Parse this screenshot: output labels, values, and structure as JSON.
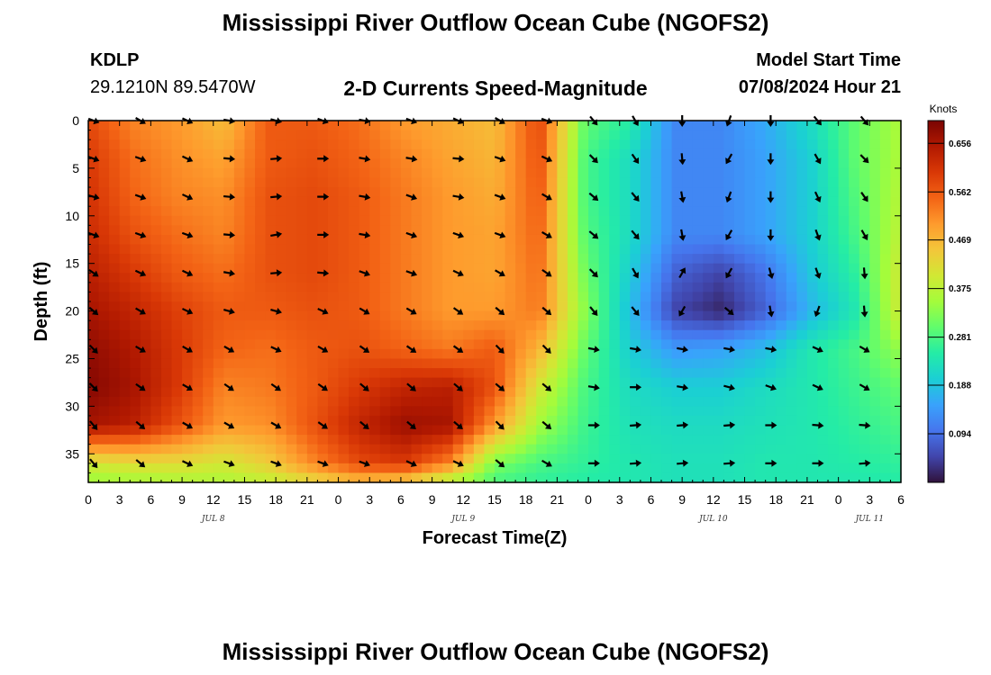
{
  "header": {
    "title": "Mississippi River Outflow Ocean Cube (NGOFS2)",
    "station_id": "KDLP",
    "station_coords": "29.1210N  89.5470W",
    "subtitle": "2-D Currents Speed-Magnitude",
    "model_start_label": "Model Start Time",
    "model_start_value": "07/08/2024 Hour 21"
  },
  "footer": {
    "title": "Mississippi River Outflow Ocean Cube (NGOFS2)"
  },
  "colors": {
    "palette": [
      "#30123b",
      "#4145ab",
      "#4675ed",
      "#39a2fc",
      "#1bcfd4",
      "#24eca6",
      "#61fc6c",
      "#a4fc3b",
      "#d1e834",
      "#f3c63a",
      "#fe9b2d",
      "#f36315",
      "#d93806",
      "#b11901",
      "#7a0403"
    ]
  },
  "chart_data": {
    "type": "heatmap",
    "title": "2-D Currents Speed-Magnitude",
    "xlabel": "Forecast Time(Z)",
    "ylabel": "Depth (ft)",
    "xlim": [
      0,
      78
    ],
    "ylim": [
      0,
      38
    ],
    "y_inverted": true,
    "x_ticks": [
      0,
      3,
      6,
      9,
      12,
      15,
      18,
      21,
      24,
      27,
      30,
      33,
      36,
      39,
      42,
      45,
      48,
      51,
      54,
      57,
      60,
      63,
      66,
      69,
      72,
      75,
      78
    ],
    "x_tick_labels": [
      "0",
      "3",
      "6",
      "9",
      "12",
      "15",
      "18",
      "21",
      "0",
      "3",
      "6",
      "9",
      "12",
      "15",
      "18",
      "21",
      "0",
      "3",
      "6",
      "9",
      "12",
      "15",
      "18",
      "21",
      "0",
      "3",
      "6"
    ],
    "date_labels": [
      {
        "text": "JUL 8",
        "x": 12
      },
      {
        "text": "JUL 9",
        "x": 36
      },
      {
        "text": "JUL 10",
        "x": 60
      },
      {
        "text": "JUL 11",
        "x": 75
      }
    ],
    "y_ticks": [
      0,
      5,
      10,
      15,
      20,
      25,
      30,
      35
    ],
    "y_tick_labels": [
      "0",
      "5",
      "10",
      "15",
      "20",
      "25",
      "30",
      "35"
    ],
    "colorbar": {
      "unit": "Knots",
      "min": 0.0,
      "max": 0.7,
      "tick_values": [
        0.094,
        0.188,
        0.281,
        0.375,
        0.469,
        0.562,
        0.656
      ],
      "tick_labels": [
        "0.094",
        "0.188",
        "0.281",
        "0.375",
        "0.469",
        "0.562",
        "0.656"
      ]
    },
    "x": [
      0,
      4.3,
      8.7,
      13,
      17.3,
      21.7,
      26,
      30.3,
      34.7,
      39,
      43.3,
      47.7,
      52,
      56.3,
      60.7,
      65,
      69.3,
      73.7,
      78
    ],
    "depth": [
      0,
      4,
      8,
      12,
      16,
      20,
      24,
      28,
      32,
      36,
      38
    ],
    "speed": [
      [
        0.58,
        0.52,
        0.5,
        0.46,
        0.56,
        0.56,
        0.54,
        0.5,
        0.48,
        0.46,
        0.58,
        0.3,
        0.25,
        0.12,
        0.12,
        0.16,
        0.22,
        0.3,
        0.36
      ],
      [
        0.6,
        0.54,
        0.51,
        0.49,
        0.56,
        0.57,
        0.55,
        0.52,
        0.49,
        0.47,
        0.57,
        0.28,
        0.22,
        0.12,
        0.12,
        0.15,
        0.2,
        0.3,
        0.36
      ],
      [
        0.61,
        0.55,
        0.52,
        0.51,
        0.57,
        0.58,
        0.56,
        0.53,
        0.5,
        0.48,
        0.56,
        0.28,
        0.22,
        0.12,
        0.12,
        0.15,
        0.2,
        0.29,
        0.37
      ],
      [
        0.62,
        0.57,
        0.54,
        0.52,
        0.57,
        0.58,
        0.56,
        0.53,
        0.5,
        0.49,
        0.55,
        0.29,
        0.22,
        0.12,
        0.12,
        0.15,
        0.2,
        0.28,
        0.38
      ],
      [
        0.64,
        0.6,
        0.56,
        0.54,
        0.57,
        0.58,
        0.56,
        0.53,
        0.5,
        0.49,
        0.54,
        0.31,
        0.2,
        0.08,
        0.05,
        0.1,
        0.19,
        0.26,
        0.4
      ],
      [
        0.66,
        0.63,
        0.59,
        0.56,
        0.56,
        0.57,
        0.56,
        0.53,
        0.5,
        0.5,
        0.53,
        0.33,
        0.18,
        0.05,
        0.02,
        0.08,
        0.17,
        0.24,
        0.4
      ],
      [
        0.68,
        0.65,
        0.6,
        0.55,
        0.54,
        0.56,
        0.57,
        0.55,
        0.53,
        0.56,
        0.47,
        0.3,
        0.2,
        0.14,
        0.15,
        0.18,
        0.24,
        0.28,
        0.34
      ],
      [
        0.69,
        0.66,
        0.6,
        0.52,
        0.53,
        0.56,
        0.6,
        0.63,
        0.64,
        0.57,
        0.4,
        0.28,
        0.22,
        0.2,
        0.2,
        0.22,
        0.24,
        0.27,
        0.3
      ],
      [
        0.66,
        0.64,
        0.57,
        0.5,
        0.51,
        0.57,
        0.63,
        0.67,
        0.66,
        0.5,
        0.35,
        0.27,
        0.23,
        0.22,
        0.22,
        0.23,
        0.24,
        0.26,
        0.28
      ],
      [
        0.4,
        0.42,
        0.42,
        0.4,
        0.44,
        0.52,
        0.58,
        0.6,
        0.52,
        0.32,
        0.28,
        0.26,
        0.24,
        0.23,
        0.23,
        0.24,
        0.24,
        0.25,
        0.26
      ],
      [
        0.34,
        0.35,
        0.36,
        0.36,
        0.38,
        0.42,
        0.46,
        0.44,
        0.36,
        0.28,
        0.26,
        0.25,
        0.24,
        0.23,
        0.23,
        0.24,
        0.24,
        0.24,
        0.25
      ]
    ],
    "vector_times": [
      0.5,
      5,
      9.5,
      13.5,
      18,
      22.5,
      26.5,
      31,
      35.5,
      39.5,
      44,
      48.5,
      52.5,
      57,
      61.5,
      65.5,
      70,
      74.5
    ],
    "vector_depths": [
      0,
      4,
      8,
      12,
      16,
      20,
      24,
      28,
      32,
      36
    ],
    "vector_directions_deg": [
      [
        110,
        120,
        115,
        100,
        105,
        110,
        100,
        110,
        115,
        120,
        110,
        140,
        150,
        180,
        200,
        180,
        140,
        140
      ],
      [
        110,
        110,
        115,
        95,
        85,
        90,
        100,
        100,
        95,
        110,
        115,
        135,
        145,
        175,
        210,
        180,
        150,
        135
      ],
      [
        105,
        110,
        115,
        95,
        85,
        90,
        100,
        110,
        100,
        110,
        120,
        130,
        140,
        170,
        200,
        180,
        155,
        145
      ],
      [
        110,
        110,
        110,
        95,
        80,
        90,
        100,
        110,
        110,
        110,
        120,
        130,
        140,
        170,
        210,
        180,
        160,
        150
      ],
      [
        125,
        115,
        115,
        100,
        85,
        95,
        110,
        110,
        115,
        120,
        125,
        135,
        150,
        30,
        210,
        165,
        160,
        175
      ],
      [
        130,
        120,
        115,
        105,
        105,
        115,
        120,
        120,
        125,
        130,
        130,
        140,
        140,
        210,
        130,
        170,
        200,
        175
      ],
      [
        135,
        120,
        120,
        120,
        115,
        120,
        125,
        125,
        125,
        135,
        135,
        100,
        100,
        100,
        100,
        100,
        115,
        120
      ],
      [
        135,
        125,
        120,
        125,
        125,
        125,
        130,
        130,
        130,
        130,
        130,
        100,
        90,
        100,
        105,
        110,
        115,
        120
      ],
      [
        140,
        130,
        120,
        120,
        120,
        125,
        130,
        130,
        130,
        135,
        130,
        90,
        85,
        85,
        85,
        90,
        95,
        95
      ],
      [
        140,
        130,
        115,
        110,
        110,
        110,
        110,
        115,
        115,
        130,
        120,
        90,
        85,
        85,
        85,
        90,
        90,
        85
      ]
    ]
  }
}
